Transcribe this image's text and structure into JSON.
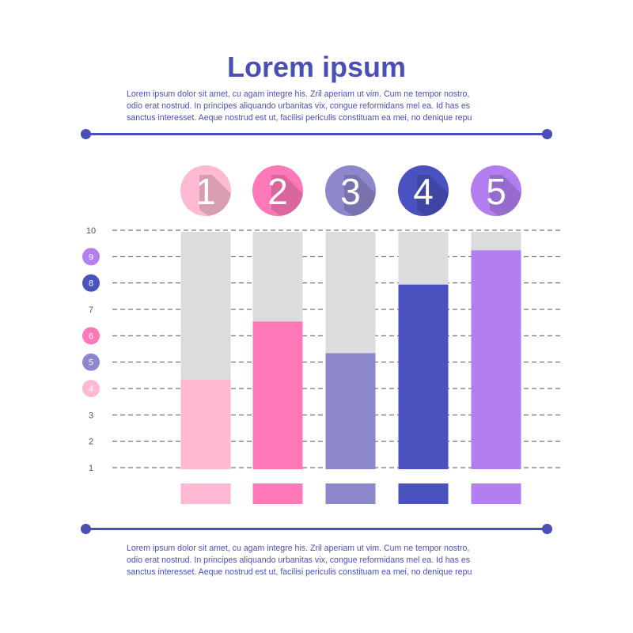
{
  "header": {
    "title": "Lorem ipsum",
    "text_lines": [
      "Lorem ipsum dolor sit amet, cu agam integre his. Zril aperiam ut vim. Cum ne tempor nostro,",
      "odio erat nostrud. In principes aliquando urbanitas vix, congue reformidans mel ea. Id has es",
      "sanctus interesset. Aeque nostrud est ut, facilisi periculis constituam ea mei, no denique repu"
    ]
  },
  "footer": {
    "text_lines": [
      "Lorem ipsum dolor sit amet, cu agam integre his. Zril aperiam ut vim. Cum ne tempor nostro,",
      "odio erat nostrud. In principes aliquando urbanitas vix, congue reformidans mel ea. Id has es",
      "sanctus interesset. Aeque nostrud est ut, facilisi periculis constituam ea mei, no denique repu"
    ]
  },
  "colors": {
    "accent": "#4a4fb5",
    "track": "#dcdcde",
    "bars": [
      "#ffb9d2",
      "#ff78b8",
      "#8d87cc",
      "#4a52bf",
      "#b27ef0"
    ]
  },
  "chart_data": {
    "type": "bar",
    "title": "",
    "categories": [
      "1",
      "2",
      "3",
      "4",
      "5"
    ],
    "values": [
      4.4,
      6.6,
      5.4,
      8.0,
      9.3
    ],
    "ylim": [
      1,
      10
    ],
    "y_ticks": [
      "1",
      "2",
      "3",
      "4",
      "5",
      "6",
      "7",
      "8",
      "9",
      "10"
    ],
    "highlighted_ticks": {
      "4": "#ffb9d2",
      "5": "#8d87cc",
      "6": "#ff78b8",
      "8": "#4a52bf",
      "9": "#b27ef0"
    },
    "grid": true
  }
}
